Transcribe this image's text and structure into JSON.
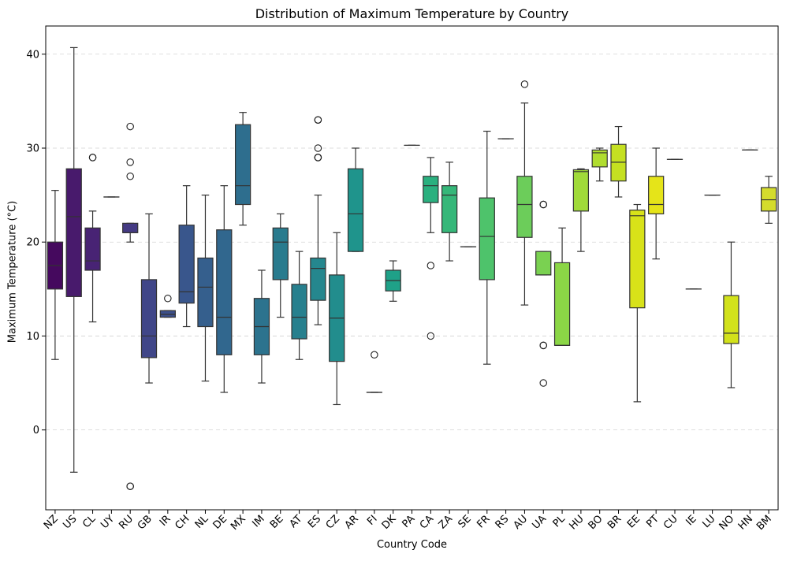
{
  "chart_data": {
    "type": "box",
    "title": "Distribution of Maximum Temperature by Country",
    "xlabel": "Country Code",
    "ylabel": "Maximum Temperature (°C)",
    "ylim": [
      -8.5,
      43
    ],
    "yticks": [
      0,
      10,
      20,
      30,
      40
    ],
    "grid": "horizontal dashed",
    "legend": "none",
    "palette": "viridis",
    "categories": [
      "NZ",
      "US",
      "CL",
      "UY",
      "RU",
      "GB",
      "IR",
      "CH",
      "NL",
      "DE",
      "MX",
      "IM",
      "BE",
      "AT",
      "ES",
      "CZ",
      "AR",
      "FI",
      "DK",
      "PA",
      "CA",
      "ZA",
      "SE",
      "FR",
      "RS",
      "AU",
      "UA",
      "PL",
      "HU",
      "BO",
      "BR",
      "EE",
      "PT",
      "CU",
      "IE",
      "LU",
      "NO",
      "HN",
      "BM"
    ],
    "colors": [
      "#45095e",
      "#481a6c",
      "#482374",
      "#472d7b",
      "#443a83",
      "#404688",
      "#3c4f8a",
      "#39568c",
      "#355f8d",
      "#31678e",
      "#2e6e8e",
      "#2c738e",
      "#297b8e",
      "#27808e",
      "#25878e",
      "#228d8d",
      "#1f948c",
      "#1e9b8a",
      "#1fa188",
      "#23a884",
      "#2ab07f",
      "#35b779",
      "#3dbc74",
      "#4ec36b",
      "#5ec962",
      "#6ccd5a",
      "#7ad151",
      "#8bd646",
      "#a0da39",
      "#b0dd2f",
      "#c5e021",
      "#d8e219",
      "#e5e419",
      "#f0e51d",
      "#f8e621",
      "#fde725",
      "#d2e21b",
      "#c0e127",
      "#d4dc2d"
    ],
    "boxes": [
      {
        "q1": 15.0,
        "median": 17.5,
        "q3": 20.0,
        "whislo": 7.5,
        "whishi": 25.5,
        "fliers": []
      },
      {
        "q1": 14.2,
        "median": 22.7,
        "q3": 27.8,
        "whislo": -4.5,
        "whishi": 40.7,
        "fliers": []
      },
      {
        "q1": 17.0,
        "median": 18.0,
        "q3": 21.5,
        "whislo": 11.5,
        "whishi": 23.3,
        "fliers": [
          29.0,
          29.0
        ]
      },
      {
        "q1": 24.8,
        "median": 24.8,
        "q3": 24.8,
        "whislo": 24.8,
        "whishi": 24.8,
        "fliers": []
      },
      {
        "q1": 21.0,
        "median": 21.0,
        "q3": 22.0,
        "whislo": 20.0,
        "whishi": 22.0,
        "fliers": [
          32.3,
          28.5,
          27.0,
          -6.0,
          -6.0
        ]
      },
      {
        "q1": 7.7,
        "median": 10.0,
        "q3": 16.0,
        "whislo": 5.0,
        "whishi": 23.0,
        "fliers": []
      },
      {
        "q1": 12.0,
        "median": 12.3,
        "q3": 12.7,
        "whislo": 12.0,
        "whishi": 12.7,
        "fliers": [
          14.0
        ]
      },
      {
        "q1": 13.5,
        "median": 14.7,
        "q3": 21.8,
        "whislo": 11.0,
        "whishi": 26.0,
        "fliers": []
      },
      {
        "q1": 11.0,
        "median": 15.2,
        "q3": 18.3,
        "whislo": 5.2,
        "whishi": 25.0,
        "fliers": []
      },
      {
        "q1": 8.0,
        "median": 12.0,
        "q3": 21.3,
        "whislo": 4.0,
        "whishi": 26.0,
        "fliers": []
      },
      {
        "q1": 24.0,
        "median": 26.0,
        "q3": 32.5,
        "whislo": 21.8,
        "whishi": 33.8,
        "fliers": []
      },
      {
        "q1": 8.0,
        "median": 11.0,
        "q3": 14.0,
        "whislo": 5.0,
        "whishi": 17.0,
        "fliers": []
      },
      {
        "q1": 16.0,
        "median": 20.0,
        "q3": 21.5,
        "whislo": 12.0,
        "whishi": 23.0,
        "fliers": []
      },
      {
        "q1": 9.7,
        "median": 12.0,
        "q3": 15.5,
        "whislo": 7.5,
        "whishi": 19.0,
        "fliers": []
      },
      {
        "q1": 13.8,
        "median": 17.2,
        "q3": 18.3,
        "whislo": 11.2,
        "whishi": 25.0,
        "fliers": [
          33.0,
          33.0,
          30.0,
          29.0,
          29.0,
          29.0
        ]
      },
      {
        "q1": 7.3,
        "median": 11.9,
        "q3": 16.5,
        "whislo": 2.7,
        "whishi": 21.0,
        "fliers": []
      },
      {
        "q1": 19.0,
        "median": 23.0,
        "q3": 27.8,
        "whislo": 19.0,
        "whishi": 30.0,
        "fliers": []
      },
      {
        "q1": 4.0,
        "median": 4.0,
        "q3": 4.0,
        "whislo": 4.0,
        "whishi": 4.0,
        "fliers": [
          8.0
        ]
      },
      {
        "q1": 14.8,
        "median": 15.9,
        "q3": 17.0,
        "whislo": 13.7,
        "whishi": 18.0,
        "fliers": []
      },
      {
        "q1": 30.3,
        "median": 30.3,
        "q3": 30.3,
        "whislo": 30.3,
        "whishi": 30.3,
        "fliers": []
      },
      {
        "q1": 24.2,
        "median": 26.0,
        "q3": 27.0,
        "whislo": 21.0,
        "whishi": 29.0,
        "fliers": [
          17.5,
          10.0
        ]
      },
      {
        "q1": 21.0,
        "median": 25.0,
        "q3": 26.0,
        "whislo": 18.0,
        "whishi": 28.5,
        "fliers": []
      },
      {
        "q1": 19.5,
        "median": 19.5,
        "q3": 19.5,
        "whislo": 19.5,
        "whishi": 19.5,
        "fliers": []
      },
      {
        "q1": 16.0,
        "median": 20.6,
        "q3": 24.7,
        "whislo": 7.0,
        "whishi": 31.8,
        "fliers": []
      },
      {
        "q1": 31.0,
        "median": 31.0,
        "q3": 31.0,
        "whislo": 31.0,
        "whishi": 31.0,
        "fliers": []
      },
      {
        "q1": 20.5,
        "median": 24.0,
        "q3": 27.0,
        "whislo": 13.3,
        "whishi": 34.8,
        "fliers": [
          36.8
        ]
      },
      {
        "q1": 16.5,
        "median": 16.5,
        "q3": 19.0,
        "whislo": 16.5,
        "whishi": 19.0,
        "fliers": [
          24.0,
          24.0,
          9.0,
          9.0,
          5.0
        ]
      },
      {
        "q1": 9.0,
        "median": 9.0,
        "q3": 17.8,
        "whislo": 9.0,
        "whishi": 21.5,
        "fliers": []
      },
      {
        "q1": 23.3,
        "median": 27.5,
        "q3": 27.7,
        "whislo": 19.0,
        "whishi": 27.8,
        "fliers": []
      },
      {
        "q1": 28.0,
        "median": 29.5,
        "q3": 29.8,
        "whislo": 26.5,
        "whishi": 30.0,
        "fliers": []
      },
      {
        "q1": 26.5,
        "median": 28.5,
        "q3": 30.4,
        "whislo": 24.8,
        "whishi": 32.3,
        "fliers": []
      },
      {
        "q1": 13.0,
        "median": 22.8,
        "q3": 23.4,
        "whislo": 3.0,
        "whishi": 24.0,
        "fliers": []
      },
      {
        "q1": 23.0,
        "median": 24.0,
        "q3": 27.0,
        "whislo": 18.2,
        "whishi": 30.0,
        "fliers": []
      },
      {
        "q1": 28.8,
        "median": 28.8,
        "q3": 28.8,
        "whislo": 28.8,
        "whishi": 28.8,
        "fliers": []
      },
      {
        "q1": 15.0,
        "median": 15.0,
        "q3": 15.0,
        "whislo": 15.0,
        "whishi": 15.0,
        "fliers": []
      },
      {
        "q1": 25.0,
        "median": 25.0,
        "q3": 25.0,
        "whislo": 25.0,
        "whishi": 25.0,
        "fliers": []
      },
      {
        "q1": 9.2,
        "median": 10.3,
        "q3": 14.3,
        "whislo": 4.5,
        "whishi": 20.0,
        "fliers": []
      },
      {
        "q1": 29.8,
        "median": 29.8,
        "q3": 29.8,
        "whislo": 29.8,
        "whishi": 29.8,
        "fliers": []
      },
      {
        "q1": 23.3,
        "median": 24.5,
        "q3": 25.8,
        "whislo": 22.0,
        "whishi": 27.0,
        "fliers": []
      }
    ]
  }
}
